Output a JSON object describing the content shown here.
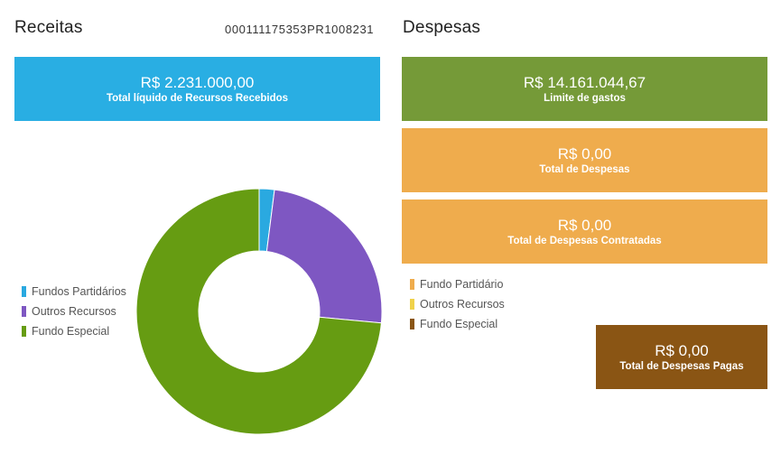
{
  "receitas": {
    "title": "Receitas",
    "doc_id": "000111175353PR1008231",
    "card": {
      "amount": "R$ 2.231.000,00",
      "caption": "Total líquido de Recursos Recebidos",
      "color": "#29aee3"
    },
    "legend": [
      {
        "label": "Fundos Partidários",
        "color": "#2aa9e0"
      },
      {
        "label": "Outros Recursos",
        "color": "#7e57c2"
      },
      {
        "label": "Fundo Especial",
        "color": "#669c12"
      }
    ]
  },
  "despesas": {
    "title": "Despesas",
    "cards": {
      "limite": {
        "amount": "R$ 14.161.044,67",
        "caption": "Limite de gastos",
        "color": "#759a38"
      },
      "total": {
        "amount": "R$ 0,00",
        "caption": "Total de Despesas",
        "color": "#efac4d"
      },
      "contratadas": {
        "amount": "R$ 0,00",
        "caption": "Total de Despesas Contratadas",
        "color": "#efac4d"
      },
      "pagas": {
        "amount": "R$ 0,00",
        "caption": "Total de Despesas Pagas",
        "color": "#8a5514"
      }
    },
    "legend": [
      {
        "label": "Fundo Partidário",
        "color": "#efac4d"
      },
      {
        "label": "Outros Recursos",
        "color": "#f0d24a"
      },
      {
        "label": "Fundo Especial",
        "color": "#8a5514"
      }
    ]
  },
  "chart_data": {
    "type": "pie",
    "variant": "donut",
    "categories": [
      "Fundos Partidários",
      "Outros Recursos",
      "Fundo Especial"
    ],
    "values": [
      2.0,
      24.5,
      73.5
    ],
    "unit": "percent (estimated)",
    "colors": [
      "#2aa9e0",
      "#7e57c2",
      "#669c12"
    ],
    "legend_position": "left"
  }
}
